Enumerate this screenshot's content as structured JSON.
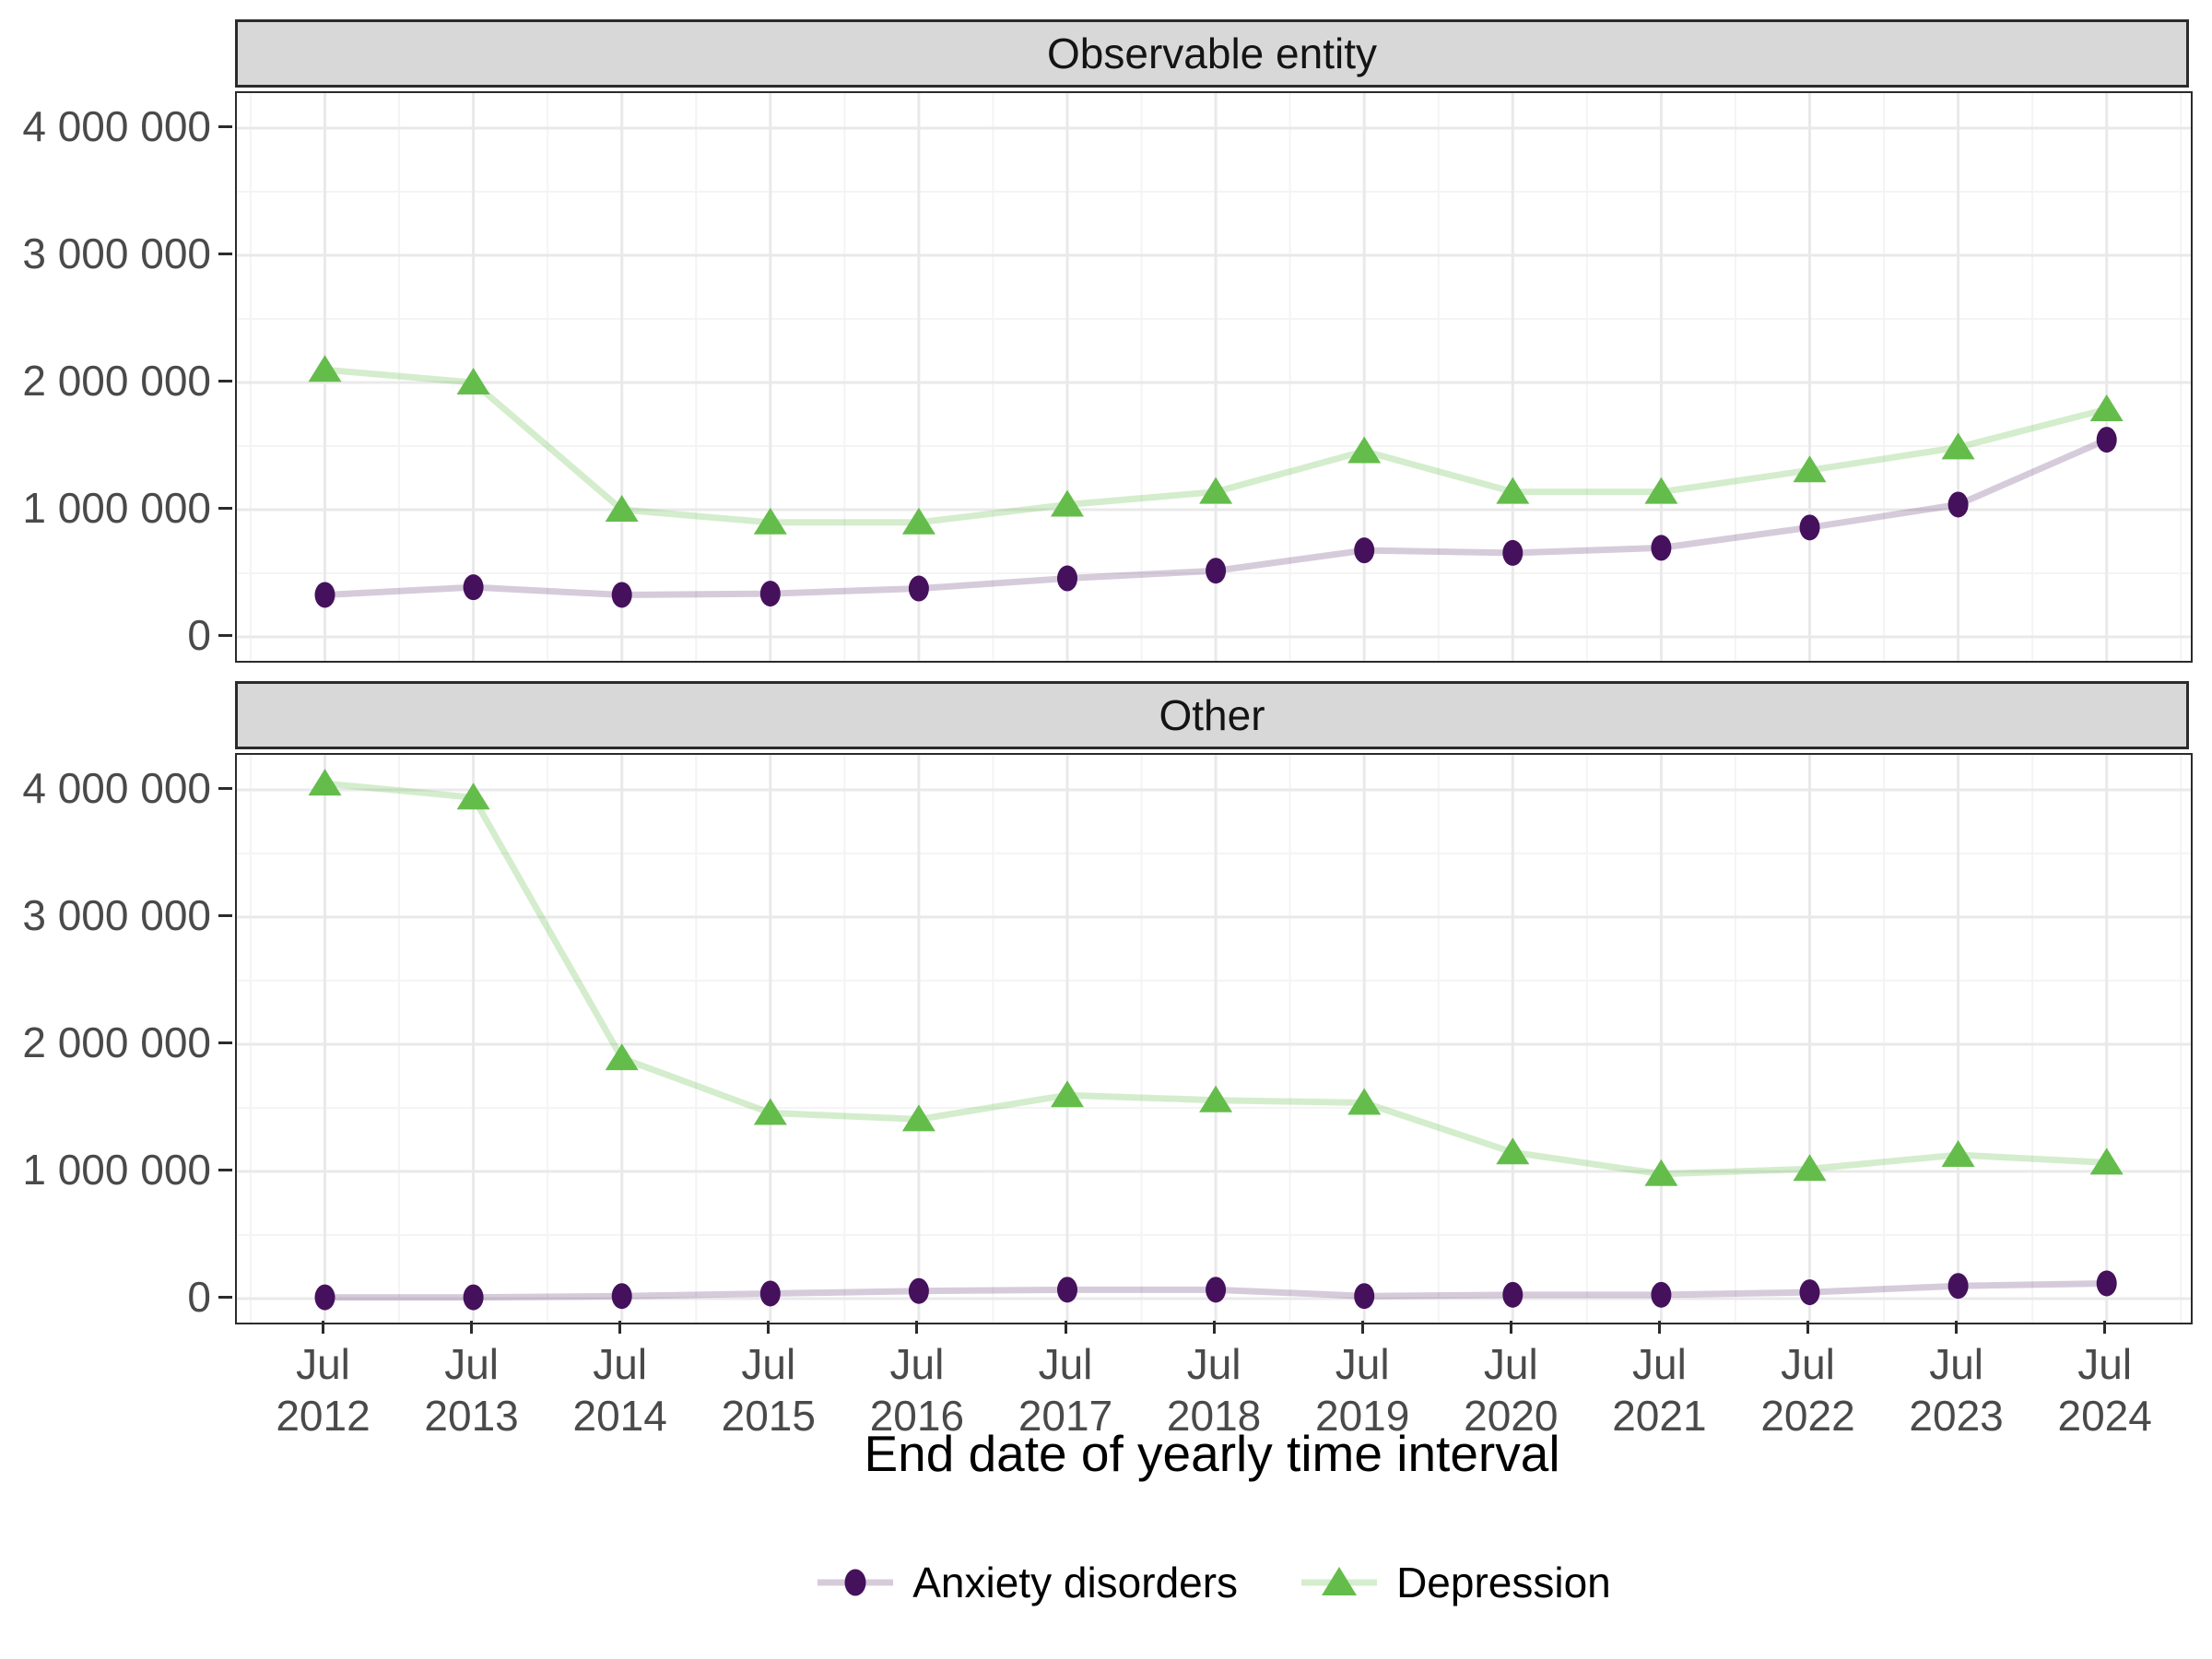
{
  "chart_data": {
    "type": "line",
    "title": "",
    "x_axis": {
      "title": "End date of yearly time interval",
      "tick_month": "Jul",
      "tick_years": [
        "2012",
        "2013",
        "2014",
        "2015",
        "2016",
        "2017",
        "2018",
        "2019",
        "2020",
        "2021",
        "2022",
        "2023",
        "2024"
      ]
    },
    "y_axis": {
      "ticks": [
        0,
        1000000,
        2000000,
        3000000,
        4000000
      ],
      "tick_labels": [
        "0",
        "1 000 000",
        "2 000 000",
        "3 000 000",
        "4 000 000"
      ],
      "minor_ticks": [
        500000,
        1500000,
        2500000,
        3500000
      ],
      "ylim": [
        -190000,
        4280000
      ],
      "grid": true
    },
    "legend_position": "bottom",
    "facets": [
      {
        "title": "Observable entity",
        "series": [
          {
            "name": "Anxiety disorders",
            "marker": "circle",
            "point_color": "#45115c",
            "line_color": "rgba(69,17,92,0.22)",
            "values": [
              330000,
              390000,
              330000,
              340000,
              380000,
              460000,
              520000,
              680000,
              660000,
              700000,
              860000,
              1040000,
              1550000
            ]
          },
          {
            "name": "Depression",
            "marker": "triangle",
            "point_color": "#64bd4b",
            "line_color": "rgba(100,189,75,0.28)",
            "values": [
              2100000,
              2000000,
              1000000,
              900000,
              900000,
              1040000,
              1140000,
              1460000,
              1140000,
              1140000,
              1310000,
              1490000,
              1790000
            ]
          }
        ]
      },
      {
        "title": "Other",
        "series": [
          {
            "name": "Anxiety disorders",
            "marker": "circle",
            "point_color": "#45115c",
            "line_color": "rgba(69,17,92,0.22)",
            "values": [
              10000,
              10000,
              20000,
              40000,
              60000,
              70000,
              70000,
              20000,
              30000,
              30000,
              50000,
              100000,
              120000
            ]
          },
          {
            "name": "Depression",
            "marker": "triangle",
            "point_color": "#64bd4b",
            "line_color": "rgba(100,189,75,0.28)",
            "values": [
              4050000,
              3940000,
              1890000,
              1460000,
              1410000,
              1600000,
              1560000,
              1540000,
              1150000,
              980000,
              1020000,
              1130000,
              1070000
            ]
          }
        ]
      }
    ],
    "colors": {
      "strip_background": "#d8d8d8",
      "strip_border": "#2b2b2b",
      "panel_border": "#2b2b2b",
      "grid_major": "#e9e9e9",
      "grid_minor": "#f4f4f4",
      "tick_text": "#4a4a4a"
    }
  }
}
